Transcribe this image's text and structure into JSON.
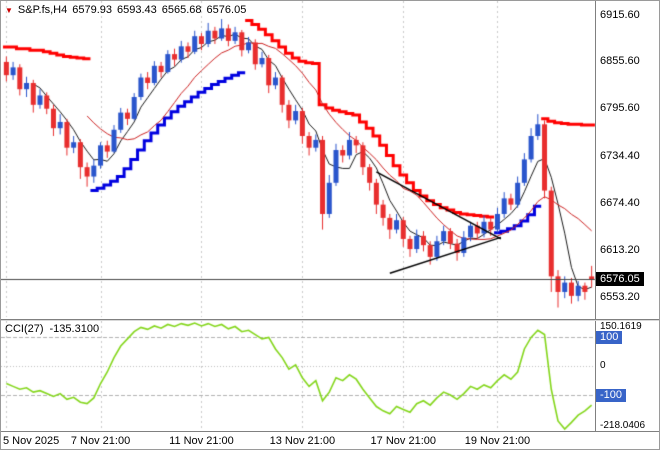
{
  "window": {
    "symbol": "S&P.fs,H4",
    "marker_icon": "▼",
    "ohlc": {
      "open": "6579.93",
      "high": "6593.43",
      "low": "6565.68",
      "close": "6576.05"
    }
  },
  "chart_data": {
    "type": "candlestick",
    "timeframe": "H4",
    "main": {
      "ylim": [
        6533,
        6928
      ],
      "current_price": 6576.05,
      "price_tag_text": "6576.05",
      "axis_labels": [
        {
          "v": 6915.6,
          "t": "6915.60"
        },
        {
          "v": 6855.6,
          "t": "6855.60"
        },
        {
          "v": 6795.6,
          "t": "6795.60"
        },
        {
          "v": 6734.4,
          "t": "6734.40"
        },
        {
          "v": 6674.4,
          "t": "6674.40"
        },
        {
          "v": 6613.2,
          "t": "6613.20"
        },
        {
          "v": 6553.2,
          "t": "6553.20"
        }
      ],
      "open": [
        6855,
        6838,
        6848,
        6820,
        6828,
        6800,
        6812,
        6795,
        6770,
        6778,
        6745,
        6752,
        6720,
        6708,
        6722,
        6748,
        6740,
        6768,
        6790,
        6782,
        6810,
        6835,
        6828,
        6850,
        6842,
        6865,
        6858,
        6875,
        6868,
        6888,
        6878,
        6895,
        6885,
        6898,
        6882,
        6893,
        6870,
        6880,
        6852,
        6860,
        6825,
        6835,
        6800,
        6780,
        6792,
        6760,
        6745,
        6755,
        6660,
        6700,
        6742,
        6735,
        6755,
        6748,
        6720,
        6700,
        6672,
        6655,
        6640,
        6652,
        6628,
        6615,
        6632,
        6620,
        6605,
        6625,
        6638,
        6622,
        6610,
        6630,
        6645,
        6635,
        6650,
        6640,
        6660,
        6680,
        6672,
        6700,
        6730,
        6760,
        6775,
        6690,
        6580,
        6560,
        6572,
        6555,
        6568,
        6579.93
      ],
      "high": [
        6862,
        6855,
        6852,
        6836,
        6832,
        6820,
        6816,
        6800,
        6788,
        6782,
        6760,
        6756,
        6726,
        6730,
        6752,
        6754,
        6774,
        6796,
        6795,
        6815,
        6840,
        6842,
        6856,
        6855,
        6870,
        6872,
        6882,
        6880,
        6895,
        6892,
        6905,
        6900,
        6910,
        6903,
        6900,
        6896,
        6887,
        6884,
        6868,
        6864,
        6842,
        6838,
        6806,
        6800,
        6796,
        6765,
        6762,
        6760,
        6710,
        6750,
        6748,
        6765,
        6760,
        6752,
        6724,
        6705,
        6678,
        6660,
        6660,
        6656,
        6632,
        6640,
        6638,
        6625,
        6632,
        6645,
        6642,
        6628,
        6638,
        6650,
        6650,
        6658,
        6655,
        6668,
        6688,
        6686,
        6708,
        6738,
        6770,
        6788,
        6780,
        6695,
        6588,
        6580,
        6578,
        6574,
        6572,
        6593.43
      ],
      "low": [
        6830,
        6832,
        6812,
        6810,
        6790,
        6795,
        6788,
        6760,
        6762,
        6735,
        6738,
        6705,
        6695,
        6700,
        6718,
        6732,
        6738,
        6764,
        6774,
        6780,
        6806,
        6820,
        6825,
        6835,
        6840,
        6850,
        6854,
        6860,
        6865,
        6870,
        6874,
        6878,
        6882,
        6875,
        6878,
        6862,
        6866,
        6845,
        6848,
        6815,
        6820,
        6790,
        6770,
        6775,
        6750,
        6735,
        6740,
        6640,
        6655,
        6696,
        6726,
        6730,
        6738,
        6710,
        6690,
        6660,
        6645,
        6628,
        6635,
        6618,
        6605,
        6610,
        6612,
        6595,
        6600,
        6620,
        6615,
        6600,
        6605,
        6625,
        6628,
        6630,
        6632,
        6636,
        6655,
        6665,
        6668,
        6696,
        6726,
        6755,
        6680,
        6560,
        6540,
        6552,
        6545,
        6548,
        6550,
        6565.68
      ],
      "close": [
        6838,
        6848,
        6820,
        6828,
        6800,
        6812,
        6795,
        6770,
        6778,
        6745,
        6752,
        6720,
        6708,
        6722,
        6748,
        6740,
        6768,
        6790,
        6782,
        6810,
        6835,
        6828,
        6850,
        6842,
        6865,
        6858,
        6875,
        6868,
        6888,
        6878,
        6895,
        6885,
        6898,
        6882,
        6893,
        6870,
        6880,
        6852,
        6860,
        6825,
        6835,
        6800,
        6780,
        6792,
        6760,
        6745,
        6755,
        6660,
        6700,
        6742,
        6735,
        6755,
        6748,
        6720,
        6700,
        6672,
        6655,
        6640,
        6652,
        6628,
        6615,
        6632,
        6620,
        6605,
        6625,
        6638,
        6622,
        6610,
        6630,
        6645,
        6635,
        6650,
        6640,
        6660,
        6680,
        6672,
        6700,
        6730,
        6760,
        6775,
        6690,
        6580,
        6560,
        6572,
        6555,
        6568,
        6560,
        6576.05
      ],
      "st": [
        6874,
        6874,
        6872,
        6872,
        6870,
        6870,
        6868,
        6866,
        6864,
        6862,
        6861,
        6860,
        6859,
        6690,
        6693,
        6697,
        6702,
        6708,
        6718,
        6730,
        6742,
        6754,
        6764,
        6774,
        6783,
        6791,
        6798,
        6804,
        6810,
        6816,
        6821,
        6826,
        6830,
        6834,
        6838,
        6841,
        6908,
        6903,
        6897,
        6890,
        6882,
        6874,
        6866,
        6860,
        6856,
        6854,
        6853,
        6800,
        6796,
        6793,
        6791,
        6789,
        6787,
        6778,
        6770,
        6760,
        6748,
        6735,
        6722,
        6710,
        6700,
        6690,
        6683,
        6677,
        6672,
        6668,
        6665,
        6662,
        6660,
        6659,
        6658,
        6657,
        6656,
        6636,
        6638,
        6641,
        6645,
        6651,
        6659,
        6670,
        6782,
        6779,
        6777,
        6776,
        6775,
        6775,
        6774,
        6774
      ],
      "st_dir": [
        -1,
        -1,
        -1,
        -1,
        -1,
        -1,
        -1,
        -1,
        -1,
        -1,
        -1,
        -1,
        -1,
        1,
        1,
        1,
        1,
        1,
        1,
        1,
        1,
        1,
        1,
        1,
        1,
        1,
        1,
        1,
        1,
        1,
        1,
        1,
        1,
        1,
        1,
        1,
        -1,
        -1,
        -1,
        -1,
        -1,
        -1,
        -1,
        -1,
        -1,
        -1,
        -1,
        -1,
        -1,
        -1,
        -1,
        -1,
        -1,
        -1,
        -1,
        -1,
        -1,
        -1,
        -1,
        -1,
        -1,
        -1,
        -1,
        -1,
        -1,
        -1,
        -1,
        -1,
        -1,
        -1,
        -1,
        -1,
        -1,
        1,
        1,
        1,
        1,
        1,
        1,
        1,
        -1,
        -1,
        -1,
        -1,
        -1,
        -1,
        -1,
        -1
      ],
      "ma_fast_period": 5,
      "ma_slow_period": 13,
      "trendlines": [
        {
          "b1": 55.0,
          "p1": 6714,
          "b2": 73.5,
          "p2": 6628
        },
        {
          "b1": 57.0,
          "p1": 6584,
          "b2": 73.5,
          "p2": 6630
        }
      ]
    },
    "cci": {
      "label": "CCI(27)",
      "value": "-135.3100",
      "ylim": [
        -218.0406,
        150.1619
      ],
      "max_label": "150.1619",
      "min_label": "-218.0406",
      "zero_label": "0",
      "levels": [
        100,
        -100
      ],
      "level_labels": [
        "100",
        "-100"
      ],
      "values": [
        -60,
        -70,
        -80,
        -75,
        -90,
        -85,
        -95,
        -105,
        -95,
        -115,
        -108,
        -125,
        -130,
        -110,
        -60,
        -20,
        30,
        70,
        95,
        120,
        135,
        128,
        140,
        132,
        145,
        138,
        148,
        142,
        150.1619,
        140,
        148,
        138,
        145,
        130,
        138,
        120,
        125,
        110,
        95,
        100,
        60,
        30,
        -10,
        5,
        -40,
        -70,
        -50,
        -120,
        -90,
        -40,
        -50,
        -30,
        -45,
        -80,
        -110,
        -140,
        -155,
        -165,
        -140,
        -150,
        -160,
        -130,
        -120,
        -135,
        -110,
        -90,
        -100,
        -115,
        -95,
        -70,
        -80,
        -65,
        -75,
        -50,
        -30,
        -45,
        -20,
        60,
        100,
        125,
        110,
        -80,
        -190,
        -218.0406,
        -195,
        -170,
        -155,
        -135.31
      ]
    },
    "time_labels": [
      {
        "bar": 0,
        "text": "5 Nov 2025"
      },
      {
        "bar": 14,
        "text": "7 Nov 21:00"
      },
      {
        "bar": 29,
        "text": "11 Nov 21:00"
      },
      {
        "bar": 44,
        "text": "13 Nov 21:00"
      },
      {
        "bar": 59,
        "text": "17 Nov 21:00"
      },
      {
        "bar": 73,
        "text": "19 Nov 21:00"
      }
    ],
    "colors": {
      "bull": "#2a55cc",
      "bear": "#e82e2e",
      "trend_up": "#0000e0",
      "trend_down": "#ff0000",
      "ma_fast": "#1a1a1a",
      "ma_slow": "#cc2222",
      "cci_line": "#84d61c",
      "grid": "#c9c9c9",
      "level_line": "#b0b0b0",
      "price_line": "#444444",
      "price_tag_bg": "#000000",
      "level_tag_bg": "#3864c8",
      "wedge_line": "#000000"
    }
  }
}
